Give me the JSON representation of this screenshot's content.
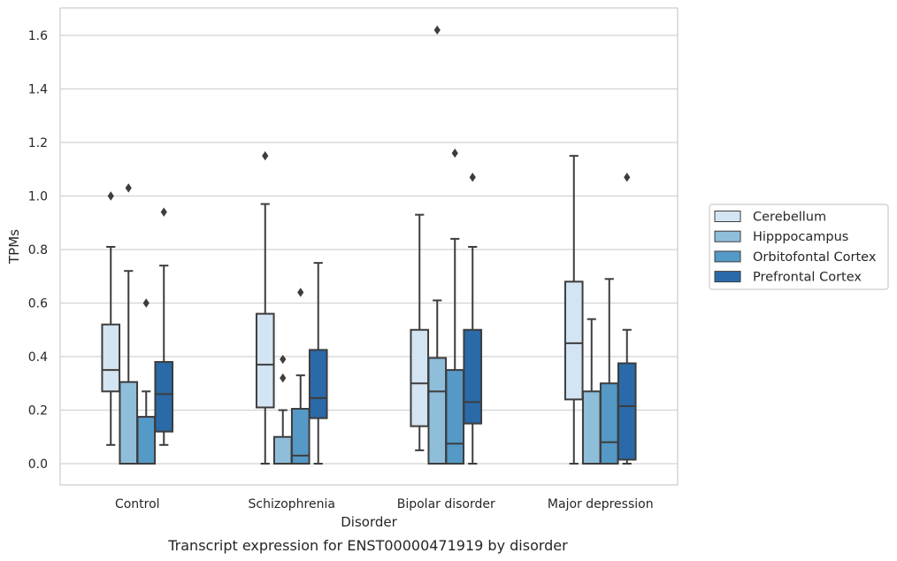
{
  "chart_data": {
    "type": "box",
    "xlabel": "Disorder",
    "ylabel": "TPMs",
    "caption": "Transcript expression for ENST00000471919 by disorder",
    "ylim": [
      -0.08,
      1.7
    ],
    "yticks": [
      "0.0",
      "0.2",
      "0.4",
      "0.6",
      "0.8",
      "1.0",
      "1.2",
      "1.4",
      "1.6"
    ],
    "grid": true,
    "legend_position": "right",
    "categories": [
      "Control",
      "Schizophrenia",
      "Bipolar disorder",
      "Major depression"
    ],
    "series": [
      {
        "name": "Cerebellum",
        "color": "#d3e4f3",
        "boxes": [
          {
            "whisker_low": 0.07,
            "q1": 0.27,
            "median": 0.35,
            "q3": 0.52,
            "whisker_high": 0.81,
            "outliers": [
              1.0
            ]
          },
          {
            "whisker_low": 0.0,
            "q1": 0.21,
            "median": 0.37,
            "q3": 0.56,
            "whisker_high": 0.97,
            "outliers": [
              1.15
            ]
          },
          {
            "whisker_low": 0.05,
            "q1": 0.14,
            "median": 0.3,
            "q3": 0.5,
            "whisker_high": 0.93,
            "outliers": []
          },
          {
            "whisker_low": 0.0,
            "q1": 0.24,
            "median": 0.45,
            "q3": 0.68,
            "whisker_high": 1.15,
            "outliers": []
          }
        ]
      },
      {
        "name": "Hipppocampus",
        "color": "#8fbedb",
        "boxes": [
          {
            "whisker_low": 0.0,
            "q1": 0.0,
            "median": 0.0,
            "q3": 0.305,
            "whisker_high": 0.72,
            "outliers": [
              1.03
            ]
          },
          {
            "whisker_low": 0.0,
            "q1": 0.0,
            "median": 0.0,
            "q3": 0.1,
            "whisker_high": 0.2,
            "outliers": [
              0.32,
              0.39
            ]
          },
          {
            "whisker_low": 0.0,
            "q1": 0.0,
            "median": 0.27,
            "q3": 0.395,
            "whisker_high": 0.61,
            "outliers": [
              1.62
            ]
          },
          {
            "whisker_low": 0.0,
            "q1": 0.0,
            "median": 0.0,
            "q3": 0.27,
            "whisker_high": 0.54,
            "outliers": []
          }
        ]
      },
      {
        "name": "Orbitofontal Cortex",
        "color": "#5599c7",
        "boxes": [
          {
            "whisker_low": 0.0,
            "q1": 0.0,
            "median": 0.0,
            "q3": 0.175,
            "whisker_high": 0.27,
            "outliers": [
              0.6
            ]
          },
          {
            "whisker_low": 0.0,
            "q1": 0.0,
            "median": 0.03,
            "q3": 0.205,
            "whisker_high": 0.33,
            "outliers": [
              0.64
            ]
          },
          {
            "whisker_low": 0.0,
            "q1": 0.0,
            "median": 0.075,
            "q3": 0.35,
            "whisker_high": 0.84,
            "outliers": [
              1.16
            ]
          },
          {
            "whisker_low": 0.0,
            "q1": 0.0,
            "median": 0.08,
            "q3": 0.3,
            "whisker_high": 0.69,
            "outliers": []
          }
        ]
      },
      {
        "name": "Prefrontal Cortex",
        "color": "#2a6aa8",
        "boxes": [
          {
            "whisker_low": 0.07,
            "q1": 0.12,
            "median": 0.26,
            "q3": 0.38,
            "whisker_high": 0.74,
            "outliers": [
              0.94
            ]
          },
          {
            "whisker_low": 0.0,
            "q1": 0.17,
            "median": 0.245,
            "q3": 0.425,
            "whisker_high": 0.75,
            "outliers": []
          },
          {
            "whisker_low": 0.0,
            "q1": 0.15,
            "median": 0.23,
            "q3": 0.5,
            "whisker_high": 0.81,
            "outliers": [
              1.07
            ]
          },
          {
            "whisker_low": 0.0,
            "q1": 0.015,
            "median": 0.215,
            "q3": 0.375,
            "whisker_high": 0.5,
            "outliers": [
              1.07
            ]
          }
        ]
      }
    ]
  }
}
